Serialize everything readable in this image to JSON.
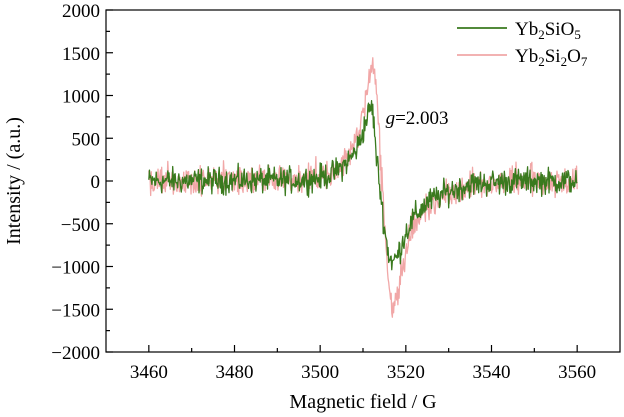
{
  "chart_data": {
    "type": "line",
    "xlabel": "Magnetic field / G",
    "ylabel": "Intensity / (a.u.)",
    "xlim": [
      3450,
      3570
    ],
    "ylim": [
      -2000,
      2000
    ],
    "xticks": [
      "3460",
      "3480",
      "3500",
      "3520",
      "3540",
      "3560"
    ],
    "yticks": [
      "2000",
      "1500",
      "1000",
      "500",
      "0",
      "−500",
      "−1000",
      "−1500",
      "−2000"
    ],
    "grid": false,
    "legend": "top-right",
    "annotation": {
      "italic": "g",
      "text": "=2.003",
      "x": 3512,
      "y": 900
    },
    "series": [
      {
        "name": "Yb2SiO5",
        "label_parts": [
          {
            "t": "Yb"
          },
          {
            "t": "2",
            "sub": true
          },
          {
            "t": "SiO"
          },
          {
            "t": "5",
            "sub": true
          }
        ],
        "color": "#3a7a1e",
        "noise": 130,
        "x": [
          3460,
          3495,
          3500,
          3503,
          3505,
          3507,
          3508,
          3509,
          3510,
          3511,
          3512,
          3512.5,
          3513,
          3514,
          3515,
          3516,
          3517,
          3518,
          3519,
          3520,
          3522,
          3525,
          3530,
          3535,
          3545,
          3560
        ],
        "y": [
          0,
          10,
          40,
          90,
          160,
          260,
          330,
          430,
          580,
          760,
          880,
          720,
          350,
          -100,
          -550,
          -870,
          -950,
          -880,
          -750,
          -600,
          -420,
          -250,
          -120,
          -40,
          0,
          0
        ]
      },
      {
        "name": "Yb2Si2O7",
        "label_parts": [
          {
            "t": "Yb"
          },
          {
            "t": "2",
            "sub": true
          },
          {
            "t": "Si"
          },
          {
            "t": "2",
            "sub": true
          },
          {
            "t": "O"
          },
          {
            "t": "7",
            "sub": true
          }
        ],
        "color": "#f1a7a7",
        "noise": 150,
        "x": [
          3460,
          3495,
          3500,
          3503,
          3505,
          3507,
          3508,
          3509,
          3510,
          3511,
          3512,
          3512.8,
          3513.5,
          3514,
          3515,
          3516,
          3516.8,
          3518,
          3519,
          3520,
          3522,
          3525,
          3530,
          3535,
          3545,
          3560
        ],
        "y": [
          0,
          20,
          60,
          120,
          210,
          330,
          420,
          560,
          800,
          1100,
          1380,
          1300,
          800,
          300,
          -500,
          -1200,
          -1500,
          -1350,
          -1050,
          -800,
          -520,
          -300,
          -130,
          -40,
          0,
          0
        ]
      }
    ]
  }
}
